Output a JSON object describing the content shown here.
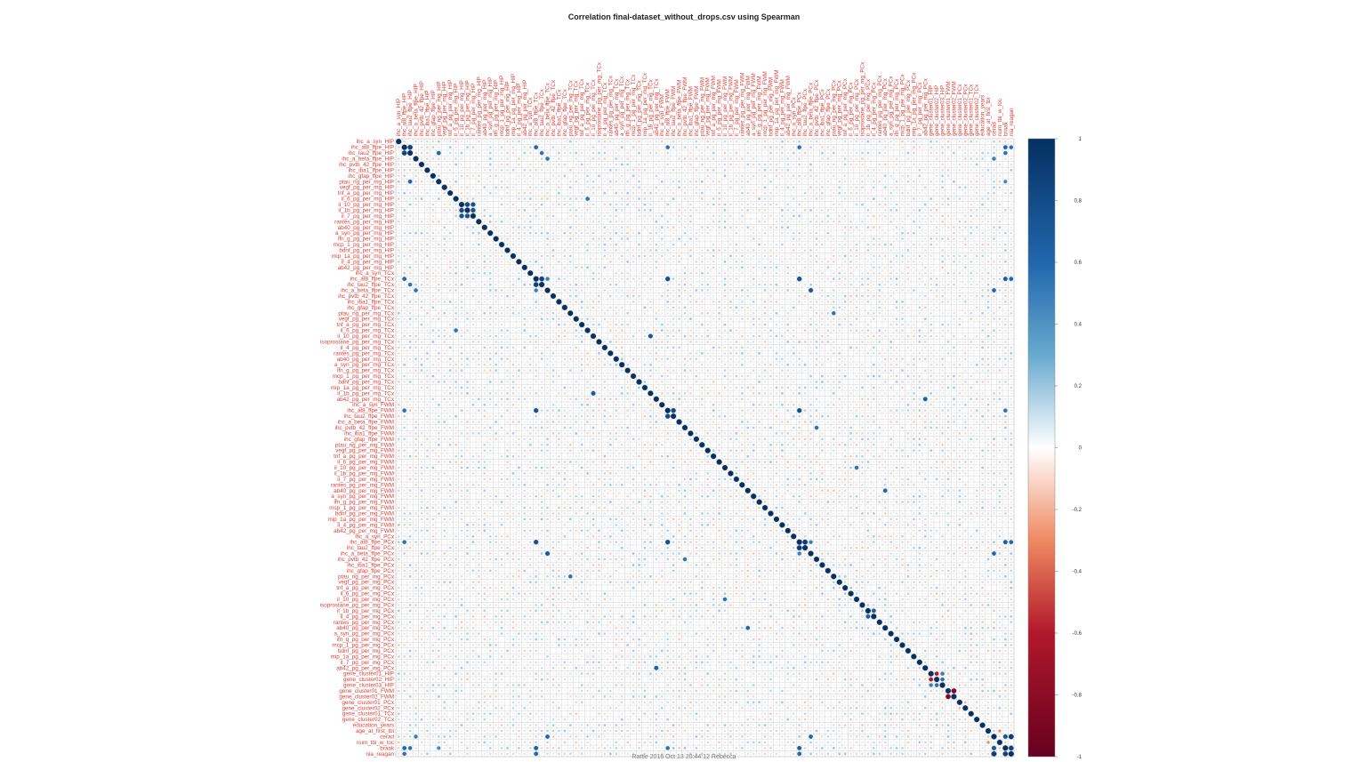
{
  "title": "Correlation final-dataset_without_drops.csv using Spearman",
  "footer": "Rattle 2016 Oct 13 20:44:12 Rebecca",
  "colors": {
    "positive_max": "#053061",
    "negative_max": "#67001f",
    "neutral": "#ffffff",
    "label": "#e0403a",
    "grid": "#cccccc"
  },
  "chart_data": {
    "type": "heatmap",
    "method": "Spearman",
    "shape": "circle",
    "labels_on": [
      "left",
      "top"
    ],
    "variables": [
      "ihc_a_syn_HIP",
      "ihc_at8_ffpe_HIP",
      "ihc_tau2_ffpe_HIP",
      "ihc_a_beta_ffpe_HIP",
      "ihc_pvtb_42_ffpe_HIP",
      "ihc_iba1_ffpe_HIP",
      "ihc_gfap_ffpe_HIP",
      "ptau_ng_per_mg_HIP",
      "vegf_pg_per_mg_HIP",
      "tnf_a_pg_per_mg_HIP",
      "il_6_pg_per_mg_HIP",
      "il_10_pg_per_mg_HIP",
      "il_1b_pg_per_mg_HIP",
      "il_7_pg_per_mg_HIP",
      "rantes_pg_per_mg_HIP",
      "ab40_pg_per_mg_HIP",
      "a_syn_pg_per_mg_HIP",
      "ifn_g_pg_per_mg_HIP",
      "mcp_1_pg_per_mg_HIP",
      "bdnf_pg_per_mg_HIP",
      "mip_1a_pg_per_mg_HIP",
      "il_4_pg_per_mg_HIP",
      "ab42_pg_per_mg_HIP",
      "ihc_a_syn_TCx",
      "ihc_at8_ffpe_TCx",
      "ihc_tau2_ffpe_TCx",
      "ihc_a_beta_ffpe_TCx",
      "ihc_pvtb_42_ffpe_TCx",
      "ihc_iba1_ffpe_TCx",
      "ihc_gfap_ffpe_TCx",
      "ptau_ng_per_mg_TCx",
      "vegf_pg_per_mg_TCx",
      "tnf_a_pg_per_mg_TCx",
      "il_6_pg_per_mg_TCx",
      "il_10_pg_per_mg_TCx",
      "isoprostane_pg_per_mg_TCx",
      "il_4_pg_per_mg_TCx",
      "rantes_pg_per_mg_TCx",
      "ab40_pg_per_mg_TCx",
      "a_syn_pg_per_mg_TCx",
      "ifn_g_pg_per_mg_TCx",
      "mcp_1_pg_per_mg_TCx",
      "bdnf_pg_per_mg_TCx",
      "mip_1a_pg_per_mg_TCx",
      "il_1b_pg_per_mg_TCx",
      "ab42_pg_per_mg_TCx",
      "ihc_a_syn_FWM",
      "ihc_at8_ffpe_FWM",
      "ihc_tau2_ffpe_FWM",
      "ihc_a_beta_ffpe_FWM",
      "ihc_pvtb_42_ffpe_FWM",
      "ihc_iba1_ffpe_FWM",
      "ihc_gfap_ffpe_FWM",
      "ptau_ng_per_mg_FWM",
      "vegf_pg_per_mg_FWM",
      "tnf_a_pg_per_mg_FWM",
      "il_6_pg_per_mg_FWM",
      "il_10_pg_per_mg_FWM",
      "il_1b_pg_per_mg_FWM",
      "il_7_pg_per_mg_FWM",
      "rantes_pg_per_mg_FWM",
      "ab40_pg_per_mg_FWM",
      "a_syn_pg_per_mg_FWM",
      "ifn_g_pg_per_mg_FWM",
      "mcp_1_pg_per_mg_FWM",
      "bdnf_pg_per_mg_FWM",
      "mip_1a_pg_per_mg_FWM",
      "il_4_pg_per_mg_FWM",
      "ab42_pg_per_mg_FWM",
      "ihc_a_syn_PCx",
      "ihc_at8_ffpe_PCx",
      "ihc_tau2_ffpe_PCx",
      "ihc_a_beta_ffpe_PCx",
      "ihc_pvtb_42_ffpe_PCx",
      "ihc_iba1_ffpe_PCx",
      "ihc_gfap_ffpe_PCx",
      "ptau_ng_per_mg_PCx",
      "vegf_pg_per_mg_PCx",
      "tnf_a_pg_per_mg_PCx",
      "il_6_pg_per_mg_PCx",
      "il_10_pg_per_mg_PCx",
      "isoprostane_pg_per_mg_PCx",
      "il_1b_pg_per_mg_PCx",
      "il_4_pg_per_mg_PCx",
      "rantes_pg_per_mg_PCx",
      "ab40_pg_per_mg_PCx",
      "a_syn_pg_per_mg_PCx",
      "ifn_g_pg_per_mg_PCx",
      "mcp_1_pg_per_mg_PCx",
      "bdnf_pg_per_mg_PCx",
      "mip_1a_pg_per_mg_PCx",
      "il_7_pg_per_mg_PCx",
      "ab42_pg_per_mg_PCx",
      "gene_cluster01_HIP",
      "gene_cluster02_HIP",
      "gene_cluster03_HIP",
      "gene_cluster01_FWM",
      "gene_cluster02_FWM",
      "gene_cluster01_PCx",
      "gene_cluster02_PCx",
      "gene_cluster01_TCx",
      "gene_cluster02_TCx",
      "education_years",
      "age_at_first_tbi",
      "cerad",
      "num_tbi_w_loc",
      "braak",
      "nia_reagan"
    ],
    "value_range": [
      -1,
      1
    ],
    "colorbar_ticks": [
      1,
      0.8,
      0.6,
      0.4,
      0.2,
      0,
      -0.2,
      -0.4,
      -0.6,
      -0.8,
      -1
    ],
    "diagonal": 1,
    "strong_correlations": [
      {
        "a": "ihc_at8_ffpe_HIP",
        "b": "ihc_tau2_ffpe_HIP",
        "r": 0.85
      },
      {
        "a": "ihc_at8_ffpe_HIP",
        "b": "ihc_at8_ffpe_TCx",
        "r": 0.6
      },
      {
        "a": "ihc_at8_ffpe_HIP",
        "b": "ihc_at8_ffpe_FWM",
        "r": 0.55
      },
      {
        "a": "ihc_at8_ffpe_HIP",
        "b": "ihc_at8_ffpe_PCx",
        "r": 0.55
      },
      {
        "a": "ihc_at8_ffpe_HIP",
        "b": "braak",
        "r": 0.6
      },
      {
        "a": "ihc_at8_ffpe_HIP",
        "b": "nia_reagan",
        "r": 0.55
      },
      {
        "a": "ihc_tau2_ffpe_HIP",
        "b": "ptau_ng_per_mg_HIP",
        "r": 0.6
      },
      {
        "a": "ihc_tau2_ffpe_HIP",
        "b": "ihc_tau2_ffpe_TCx",
        "r": 0.55
      },
      {
        "a": "ihc_tau2_ffpe_HIP",
        "b": "braak",
        "r": 0.55
      },
      {
        "a": "ihc_a_beta_ffpe_HIP",
        "b": "ihc_a_beta_ffpe_TCx",
        "r": 0.55
      },
      {
        "a": "ihc_a_beta_ffpe_HIP",
        "b": "cerad",
        "r": 0.5
      },
      {
        "a": "il_10_pg_per_mg_HIP",
        "b": "il_1b_pg_per_mg_HIP",
        "r": 0.8
      },
      {
        "a": "il_10_pg_per_mg_HIP",
        "b": "il_7_pg_per_mg_HIP",
        "r": 0.75
      },
      {
        "a": "il_1b_pg_per_mg_HIP",
        "b": "il_7_pg_per_mg_HIP",
        "r": 0.75
      },
      {
        "a": "il_6_pg_per_mg_HIP",
        "b": "il_6_pg_per_mg_TCx",
        "r": 0.55
      },
      {
        "a": "ihc_at8_ffpe_TCx",
        "b": "ihc_tau2_ffpe_TCx",
        "r": 0.85
      },
      {
        "a": "ihc_at8_ffpe_TCx",
        "b": "ihc_a_beta_ffpe_TCx",
        "r": 0.5
      },
      {
        "a": "ihc_at8_ffpe_TCx",
        "b": "ihc_at8_ffpe_FWM",
        "r": 0.75
      },
      {
        "a": "ihc_at8_ffpe_TCx",
        "b": "ihc_at8_ffpe_PCx",
        "r": 0.75
      },
      {
        "a": "ihc_at8_ffpe_TCx",
        "b": "braak",
        "r": 0.65
      },
      {
        "a": "ihc_at8_ffpe_TCx",
        "b": "nia_reagan",
        "r": 0.6
      },
      {
        "a": "ihc_a_beta_ffpe_TCx",
        "b": "ihc_a_beta_ffpe_PCx",
        "r": 0.7
      },
      {
        "a": "ihc_a_beta_ffpe_TCx",
        "b": "cerad",
        "r": 0.6
      },
      {
        "a": "il_1b_pg_per_mg_TCx",
        "b": "il_10_pg_per_mg_TCx",
        "r": 0.7
      },
      {
        "a": "ab42_pg_per_mg_TCx",
        "b": "ab42_pg_per_mg_PCx",
        "r": 0.65
      },
      {
        "a": "ihc_at8_ffpe_FWM",
        "b": "ihc_tau2_ffpe_FWM",
        "r": 0.8
      },
      {
        "a": "ihc_at8_ffpe_FWM",
        "b": "ihc_at8_ffpe_PCx",
        "r": 0.75
      },
      {
        "a": "ihc_at8_ffpe_FWM",
        "b": "braak",
        "r": 0.55
      },
      {
        "a": "ihc_pvtb_42_ffpe_FWM",
        "b": "ihc_pvtb_42_ffpe_PCx",
        "r": 0.55
      },
      {
        "a": "il_10_pg_per_mg_FWM",
        "b": "il_10_pg_per_mg_PCx",
        "r": 0.55
      },
      {
        "a": "ab40_pg_per_mg_FWM",
        "b": "ab40_pg_per_mg_PCx",
        "r": 0.6
      },
      {
        "a": "ihc_at8_ffpe_PCx",
        "b": "ihc_tau2_ffpe_PCx",
        "r": 0.9
      },
      {
        "a": "ihc_at8_ffpe_PCx",
        "b": "ihc_a_beta_ffpe_PCx",
        "r": 0.5
      },
      {
        "a": "ihc_at8_ffpe_PCx",
        "b": "braak",
        "r": 0.65
      },
      {
        "a": "ihc_at8_ffpe_PCx",
        "b": "nia_reagan",
        "r": 0.6
      },
      {
        "a": "ihc_a_beta_ffpe_PCx",
        "b": "cerad",
        "r": 0.6
      },
      {
        "a": "il_1b_pg_per_mg_PCx",
        "b": "il_4_pg_per_mg_PCx",
        "r": 0.65
      },
      {
        "a": "gene_cluster01_HIP",
        "b": "gene_cluster02_HIP",
        "r": -0.6
      },
      {
        "a": "gene_cluster01_HIP",
        "b": "gene_cluster03_HIP",
        "r": 0.5
      },
      {
        "a": "gene_cluster02_HIP",
        "b": "gene_cluster03_HIP",
        "r": 0.55
      },
      {
        "a": "gene_cluster01_FWM",
        "b": "gene_cluster02_FWM",
        "r": -0.85
      },
      {
        "a": "gene_cluster01_PCx",
        "b": "gene_cluster02_PCx",
        "r": -0.2
      },
      {
        "a": "cerad",
        "b": "braak",
        "r": 0.7
      },
      {
        "a": "cerad",
        "b": "nia_reagan",
        "r": 0.9
      },
      {
        "a": "braak",
        "b": "nia_reagan",
        "r": 0.85
      },
      {
        "a": "num_tbi_w_loc",
        "b": "age_at_first_tbi",
        "r": -0.3
      },
      {
        "a": "ptau_ng_per_mg_HIP",
        "b": "braak",
        "r": 0.45
      },
      {
        "a": "ptau_ng_per_mg_TCx",
        "b": "ptau_ng_per_mg_PCx",
        "r": 0.55
      }
    ]
  }
}
